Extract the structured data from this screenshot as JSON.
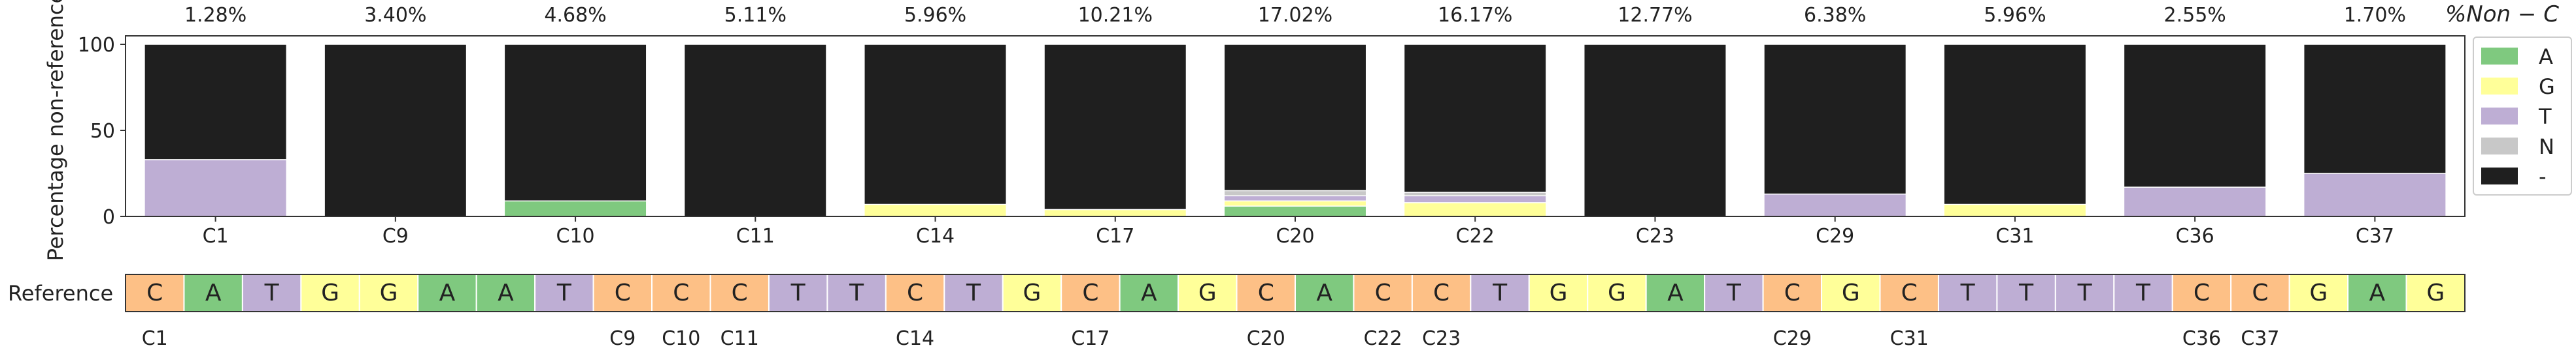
{
  "chart_data": [
    {
      "type": "bar",
      "stacked": true,
      "categories": [
        "C1",
        "C9",
        "C10",
        "C11",
        "C14",
        "C17",
        "C20",
        "C22",
        "C23",
        "C29",
        "C31",
        "C36",
        "C37"
      ],
      "ylabel": "Percentage non-reference",
      "ylim": [
        0,
        100
      ],
      "yticks": [
        "0",
        "50",
        "100"
      ],
      "percent_title": "%Non − C",
      "percent_labels": [
        "1.28%",
        "3.40%",
        "4.68%",
        "5.11%",
        "5.96%",
        "10.21%",
        "17.02%",
        "16.17%",
        "12.77%",
        "6.38%",
        "5.96%",
        "2.55%",
        "1.70%"
      ],
      "legend_position": "right",
      "series": [
        {
          "name": "A",
          "color": "#7fc97f",
          "values": [
            0,
            0,
            9,
            0,
            0,
            0,
            6,
            0,
            0,
            0,
            0,
            0,
            0
          ]
        },
        {
          "name": "G",
          "color": "#ffff99",
          "values": [
            0,
            0,
            0,
            0,
            7,
            4,
            3,
            8,
            0,
            0,
            7,
            0,
            0
          ]
        },
        {
          "name": "T",
          "color": "#beaed4",
          "values": [
            33,
            0,
            0,
            0,
            0,
            0,
            3,
            4,
            0,
            13,
            0,
            17,
            25
          ]
        },
        {
          "name": "N",
          "color": "#c8c8c8",
          "values": [
            0,
            0,
            0,
            0,
            0,
            0,
            3,
            2,
            0,
            0,
            0,
            0,
            0
          ]
        },
        {
          "name": "-",
          "color": "#1f1f1f",
          "values": [
            67,
            100,
            91,
            100,
            93,
            96,
            85,
            86,
            100,
            87,
            93,
            83,
            75
          ]
        }
      ]
    },
    {
      "type": "table",
      "row_label": "Reference",
      "sequence": [
        "C",
        "A",
        "T",
        "G",
        "G",
        "A",
        "A",
        "T",
        "C",
        "C",
        "C",
        "T",
        "T",
        "C",
        "T",
        "G",
        "C",
        "A",
        "G",
        "C",
        "A",
        "C",
        "C",
        "T",
        "G",
        "G",
        "A",
        "T",
        "C",
        "G",
        "C",
        "T",
        "T",
        "T",
        "T",
        "C",
        "C",
        "G",
        "A",
        "G"
      ],
      "base_colors": {
        "A": "#7fc97f",
        "C": "#fdc086",
        "G": "#ffff99",
        "T": "#beaed4"
      },
      "position_labels": [
        {
          "index": 0,
          "label": "C1"
        },
        {
          "index": 8,
          "label": "C9"
        },
        {
          "index": 9,
          "label": "C10"
        },
        {
          "index": 10,
          "label": "C11"
        },
        {
          "index": 13,
          "label": "C14"
        },
        {
          "index": 16,
          "label": "C17"
        },
        {
          "index": 19,
          "label": "C20"
        },
        {
          "index": 21,
          "label": "C22"
        },
        {
          "index": 22,
          "label": "C23"
        },
        {
          "index": 28,
          "label": "C29"
        },
        {
          "index": 30,
          "label": "C31"
        },
        {
          "index": 35,
          "label": "C36"
        },
        {
          "index": 36,
          "label": "C37"
        }
      ]
    }
  ]
}
